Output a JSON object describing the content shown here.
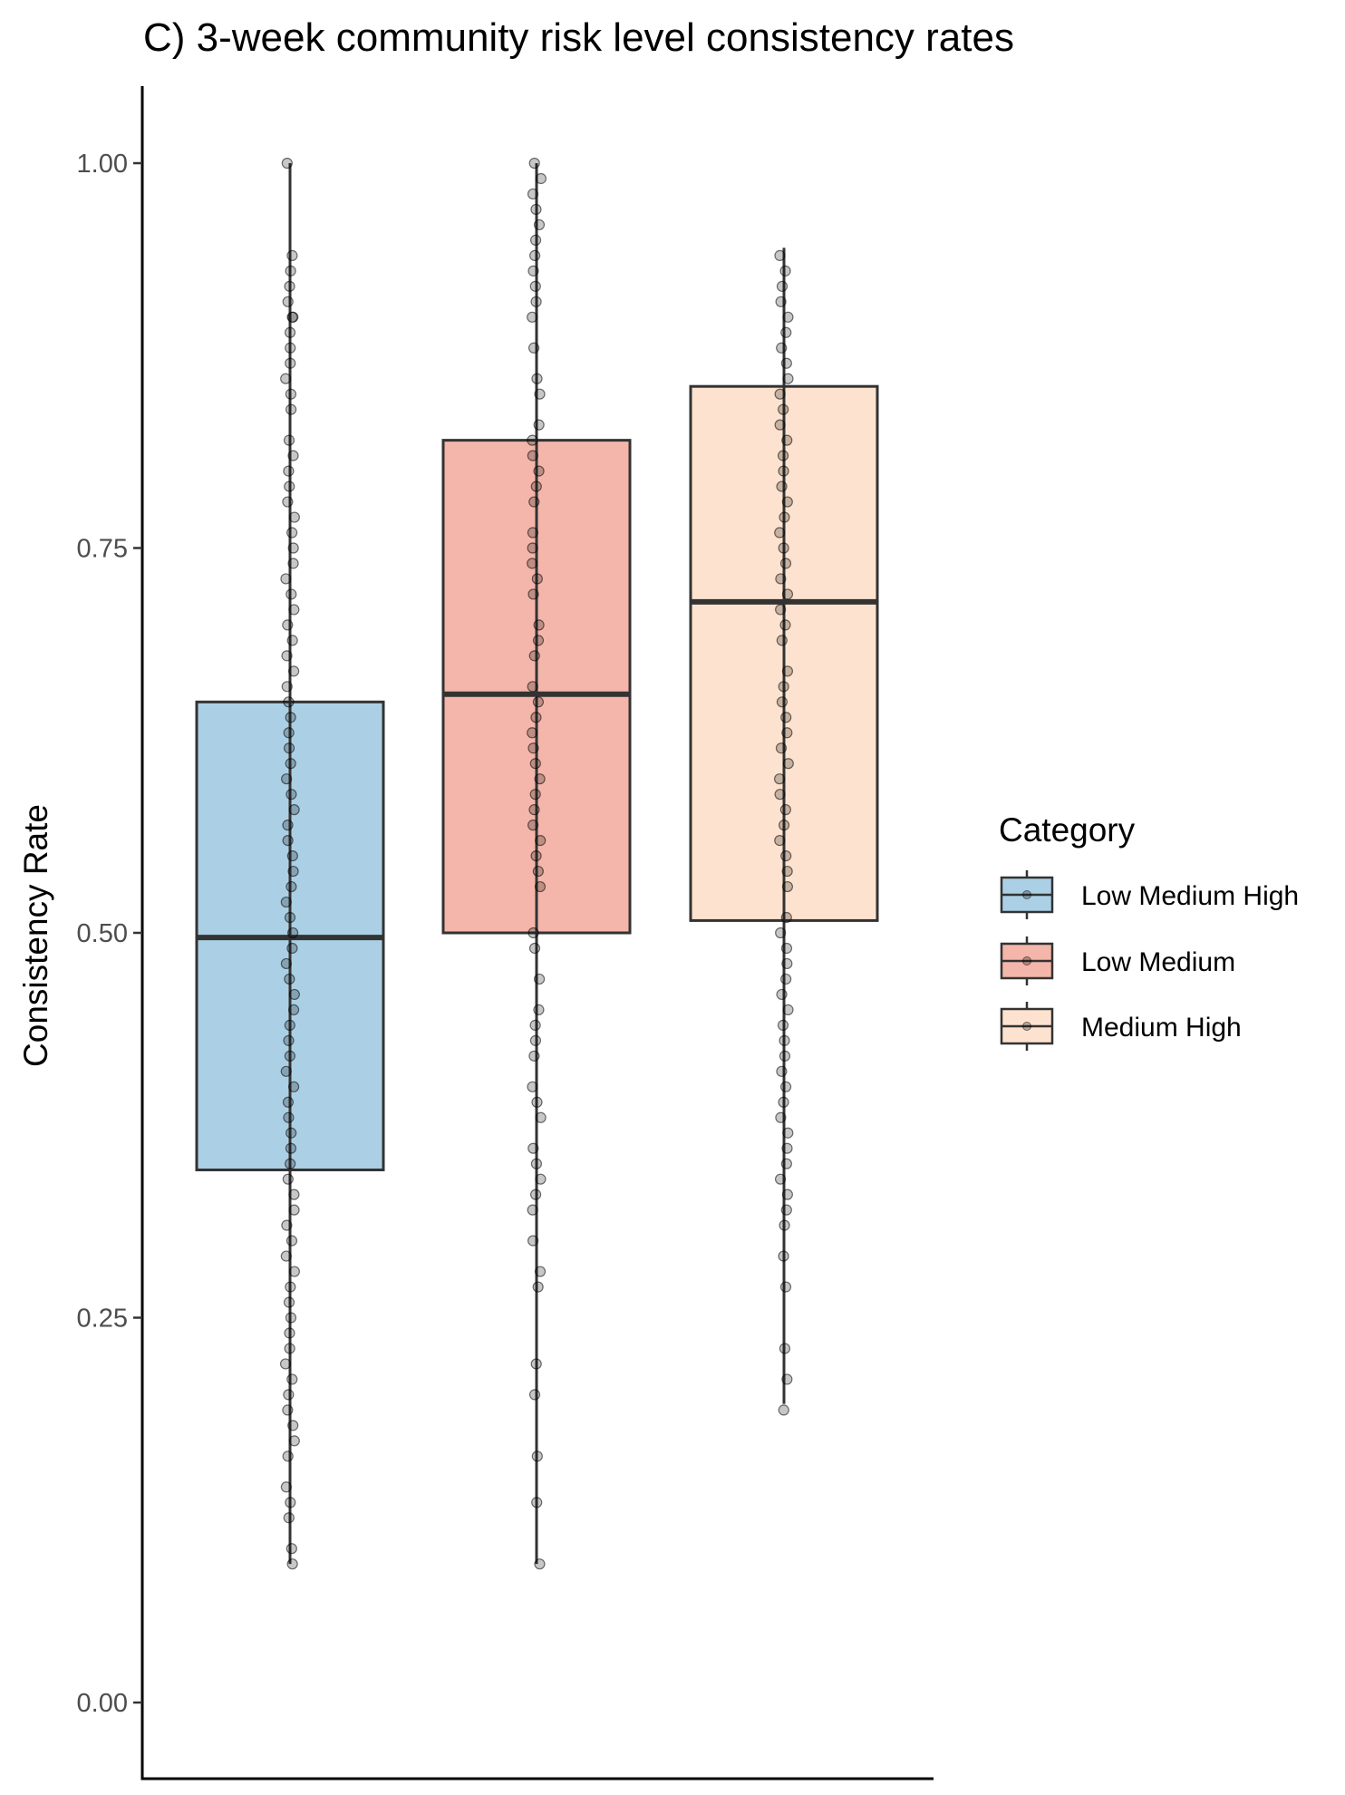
{
  "chart_data": {
    "type": "box",
    "title": "C) 3-week community risk level consistency rates",
    "xlabel": "",
    "ylabel": "Consistency Rate",
    "ylim": [
      -0.05,
      1.05
    ],
    "yticks": [
      0.0,
      0.25,
      0.5,
      0.75,
      1.0
    ],
    "ytick_labels": [
      "0.00",
      "0.25",
      "0.50",
      "0.75",
      "1.00"
    ],
    "grid": false,
    "legend": {
      "title": "Category",
      "placement": "right",
      "entries": [
        "Low Medium High",
        "Low Medium",
        "Medium High"
      ]
    },
    "series": [
      {
        "name": "Low Medium High",
        "color": "#abd0e6",
        "min": 0.09,
        "q1": 0.346,
        "median": 0.497,
        "q3": 0.65,
        "max": 1.0,
        "points": [
          1.0,
          0.94,
          0.93,
          0.92,
          0.91,
          0.9,
          0.9,
          0.89,
          0.88,
          0.87,
          0.86,
          0.85,
          0.84,
          0.82,
          0.81,
          0.8,
          0.79,
          0.78,
          0.77,
          0.76,
          0.75,
          0.74,
          0.73,
          0.72,
          0.71,
          0.7,
          0.69,
          0.68,
          0.67,
          0.66,
          0.65,
          0.64,
          0.63,
          0.62,
          0.61,
          0.6,
          0.59,
          0.58,
          0.57,
          0.56,
          0.55,
          0.54,
          0.53,
          0.52,
          0.51,
          0.5,
          0.49,
          0.48,
          0.47,
          0.46,
          0.45,
          0.44,
          0.43,
          0.42,
          0.41,
          0.4,
          0.39,
          0.38,
          0.37,
          0.36,
          0.35,
          0.34,
          0.33,
          0.32,
          0.31,
          0.3,
          0.29,
          0.28,
          0.27,
          0.26,
          0.25,
          0.24,
          0.23,
          0.22,
          0.21,
          0.2,
          0.19,
          0.18,
          0.17,
          0.16,
          0.14,
          0.13,
          0.12,
          0.1,
          0.09
        ]
      },
      {
        "name": "Low Medium",
        "color": "#f4b6aa",
        "min": 0.09,
        "q1": 0.5,
        "median": 0.655,
        "q3": 0.82,
        "max": 1.0,
        "points": [
          1.0,
          0.99,
          0.98,
          0.97,
          0.96,
          0.95,
          0.94,
          0.93,
          0.92,
          0.91,
          0.9,
          0.88,
          0.86,
          0.85,
          0.83,
          0.82,
          0.81,
          0.8,
          0.79,
          0.78,
          0.76,
          0.75,
          0.74,
          0.73,
          0.72,
          0.7,
          0.69,
          0.68,
          0.66,
          0.65,
          0.64,
          0.63,
          0.62,
          0.61,
          0.6,
          0.59,
          0.58,
          0.57,
          0.56,
          0.55,
          0.54,
          0.53,
          0.5,
          0.49,
          0.47,
          0.45,
          0.44,
          0.43,
          0.42,
          0.4,
          0.39,
          0.38,
          0.36,
          0.35,
          0.34,
          0.33,
          0.32,
          0.3,
          0.28,
          0.27,
          0.22,
          0.2,
          0.16,
          0.13,
          0.09
        ]
      },
      {
        "name": "Medium High",
        "color": "#fde3cf",
        "min": 0.194,
        "q1": 0.508,
        "median": 0.715,
        "q3": 0.855,
        "max": 0.945,
        "points": [
          0.94,
          0.93,
          0.92,
          0.91,
          0.9,
          0.89,
          0.88,
          0.87,
          0.86,
          0.85,
          0.84,
          0.83,
          0.82,
          0.81,
          0.8,
          0.79,
          0.78,
          0.77,
          0.76,
          0.75,
          0.74,
          0.73,
          0.72,
          0.71,
          0.7,
          0.69,
          0.67,
          0.66,
          0.65,
          0.64,
          0.63,
          0.62,
          0.61,
          0.6,
          0.59,
          0.58,
          0.57,
          0.56,
          0.55,
          0.54,
          0.53,
          0.51,
          0.5,
          0.49,
          0.48,
          0.47,
          0.46,
          0.45,
          0.44,
          0.43,
          0.42,
          0.41,
          0.4,
          0.39,
          0.38,
          0.37,
          0.36,
          0.35,
          0.34,
          0.33,
          0.32,
          0.31,
          0.29,
          0.27,
          0.23,
          0.21,
          0.19
        ]
      }
    ]
  }
}
